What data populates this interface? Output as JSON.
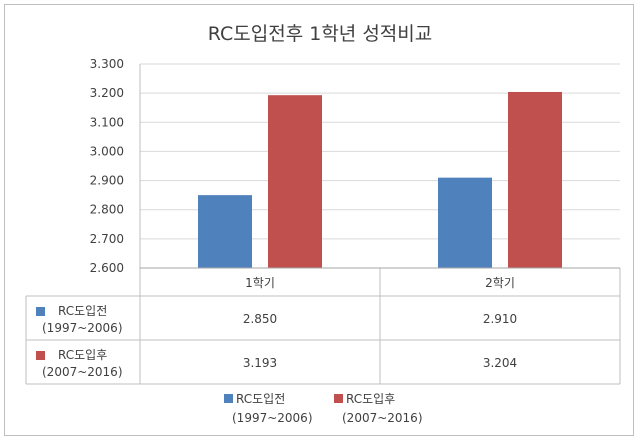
{
  "chart_data": {
    "type": "bar",
    "title": "RC도입전후 1학년 성적비교",
    "categories": [
      "1학기",
      "2학기"
    ],
    "ylim": [
      2.6,
      3.3
    ],
    "yticks": [
      "2.600",
      "2.700",
      "2.800",
      "2.900",
      "3.000",
      "3.100",
      "3.200",
      "3.300"
    ],
    "grid": true,
    "legend_position": "bottom",
    "data_table": true,
    "series": [
      {
        "name": "RC도입전",
        "period": "(1997~2006)",
        "color": "#4f81bd",
        "values": [
          2.85,
          2.91
        ],
        "labels": [
          "2.850",
          "2.910"
        ]
      },
      {
        "name": "RC도입후",
        "period": "(2007~2016)",
        "color": "#c0504d",
        "values": [
          3.193,
          3.204
        ],
        "labels": [
          "3.193",
          "3.204"
        ]
      }
    ]
  }
}
